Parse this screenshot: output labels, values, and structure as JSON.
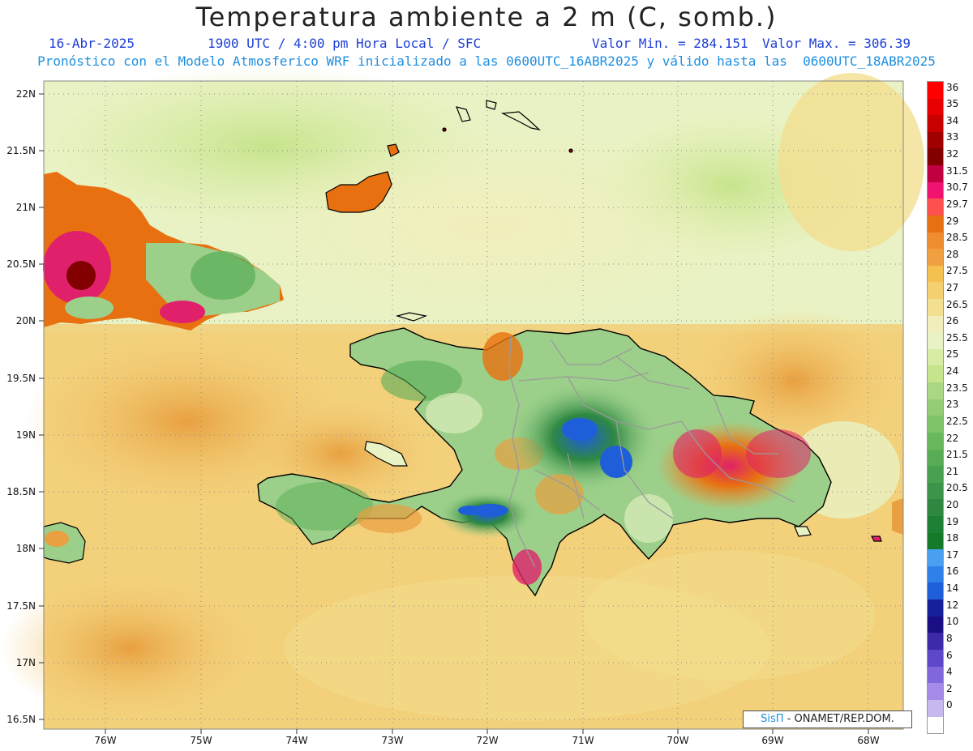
{
  "header": {
    "title": "Temperatura ambiente a 2 m (C, somb.)",
    "date": "16-Abr-2025",
    "time": "1900 UTC / 4:00 pm Hora Local / SFC",
    "valmin": "Valor Min. = 284.151",
    "valmax": "Valor Max. = 306.39",
    "forecast": "Pronóstico con el Modelo Atmosferico WRF inicializado a las 0600UTC_16ABR2025 y válido hasta las  0600UTC_18ABR2025"
  },
  "lat_labels": [
    "22N",
    "21.5N",
    "21N",
    "20.5N",
    "20N",
    "19.5N",
    "19N",
    "18.5N",
    "18N",
    "17.5N",
    "17N",
    "16.5N"
  ],
  "lon_labels": [
    "76W",
    "75W",
    "74W",
    "73W",
    "72W",
    "71W",
    "70W",
    "69W",
    "68W"
  ],
  "legend": {
    "labels": [
      "36",
      "35",
      "34",
      "33",
      "32",
      "31.5",
      "30.7",
      "29.7",
      "29",
      "28.5",
      "28",
      "27.5",
      "27",
      "26.5",
      "26",
      "25.5",
      "25",
      "24",
      "23.5",
      "23",
      "22.5",
      "22",
      "21.5",
      "21",
      "20.5",
      "20",
      "19",
      "18",
      "17",
      "16",
      "14",
      "12",
      "10",
      "8",
      "6",
      "4",
      "2",
      "0"
    ],
    "colors": [
      "#ff0000",
      "#e60000",
      "#c80000",
      "#a00000",
      "#820000",
      "#c00040",
      "#f01470",
      "#ff5050",
      "#e87010",
      "#f08c30",
      "#f0a040",
      "#f4c050",
      "#f4d070",
      "#f2df90",
      "#f2eebc",
      "#e9f2c4",
      "#d9eca4",
      "#c6e48c",
      "#aad882",
      "#94cc74",
      "#80c46a",
      "#6ab85e",
      "#58ac56",
      "#48a050",
      "#3a944a",
      "#2e8842",
      "#1e8034",
      "#147a2a",
      "#4aa0f0",
      "#2f80e8",
      "#1e5ed8",
      "#16209a",
      "#1a0e84",
      "#3c2aa8",
      "#5e48c8",
      "#8068dc",
      "#a48ce8",
      "#c8b8f0"
    ]
  },
  "credit": {
    "brand": "SisΠ",
    "text": " - ONAMET/REP.DOM."
  },
  "colors": {
    "ocean_warm": "#f2cf78",
    "ocean_hot": "#ecb45a",
    "land_mid": "#9cd08a",
    "land_cool": "#2e8842",
    "land_cold": "#1e5ed8",
    "land_hot": "#e87010",
    "land_very_hot": "#e0206a"
  }
}
